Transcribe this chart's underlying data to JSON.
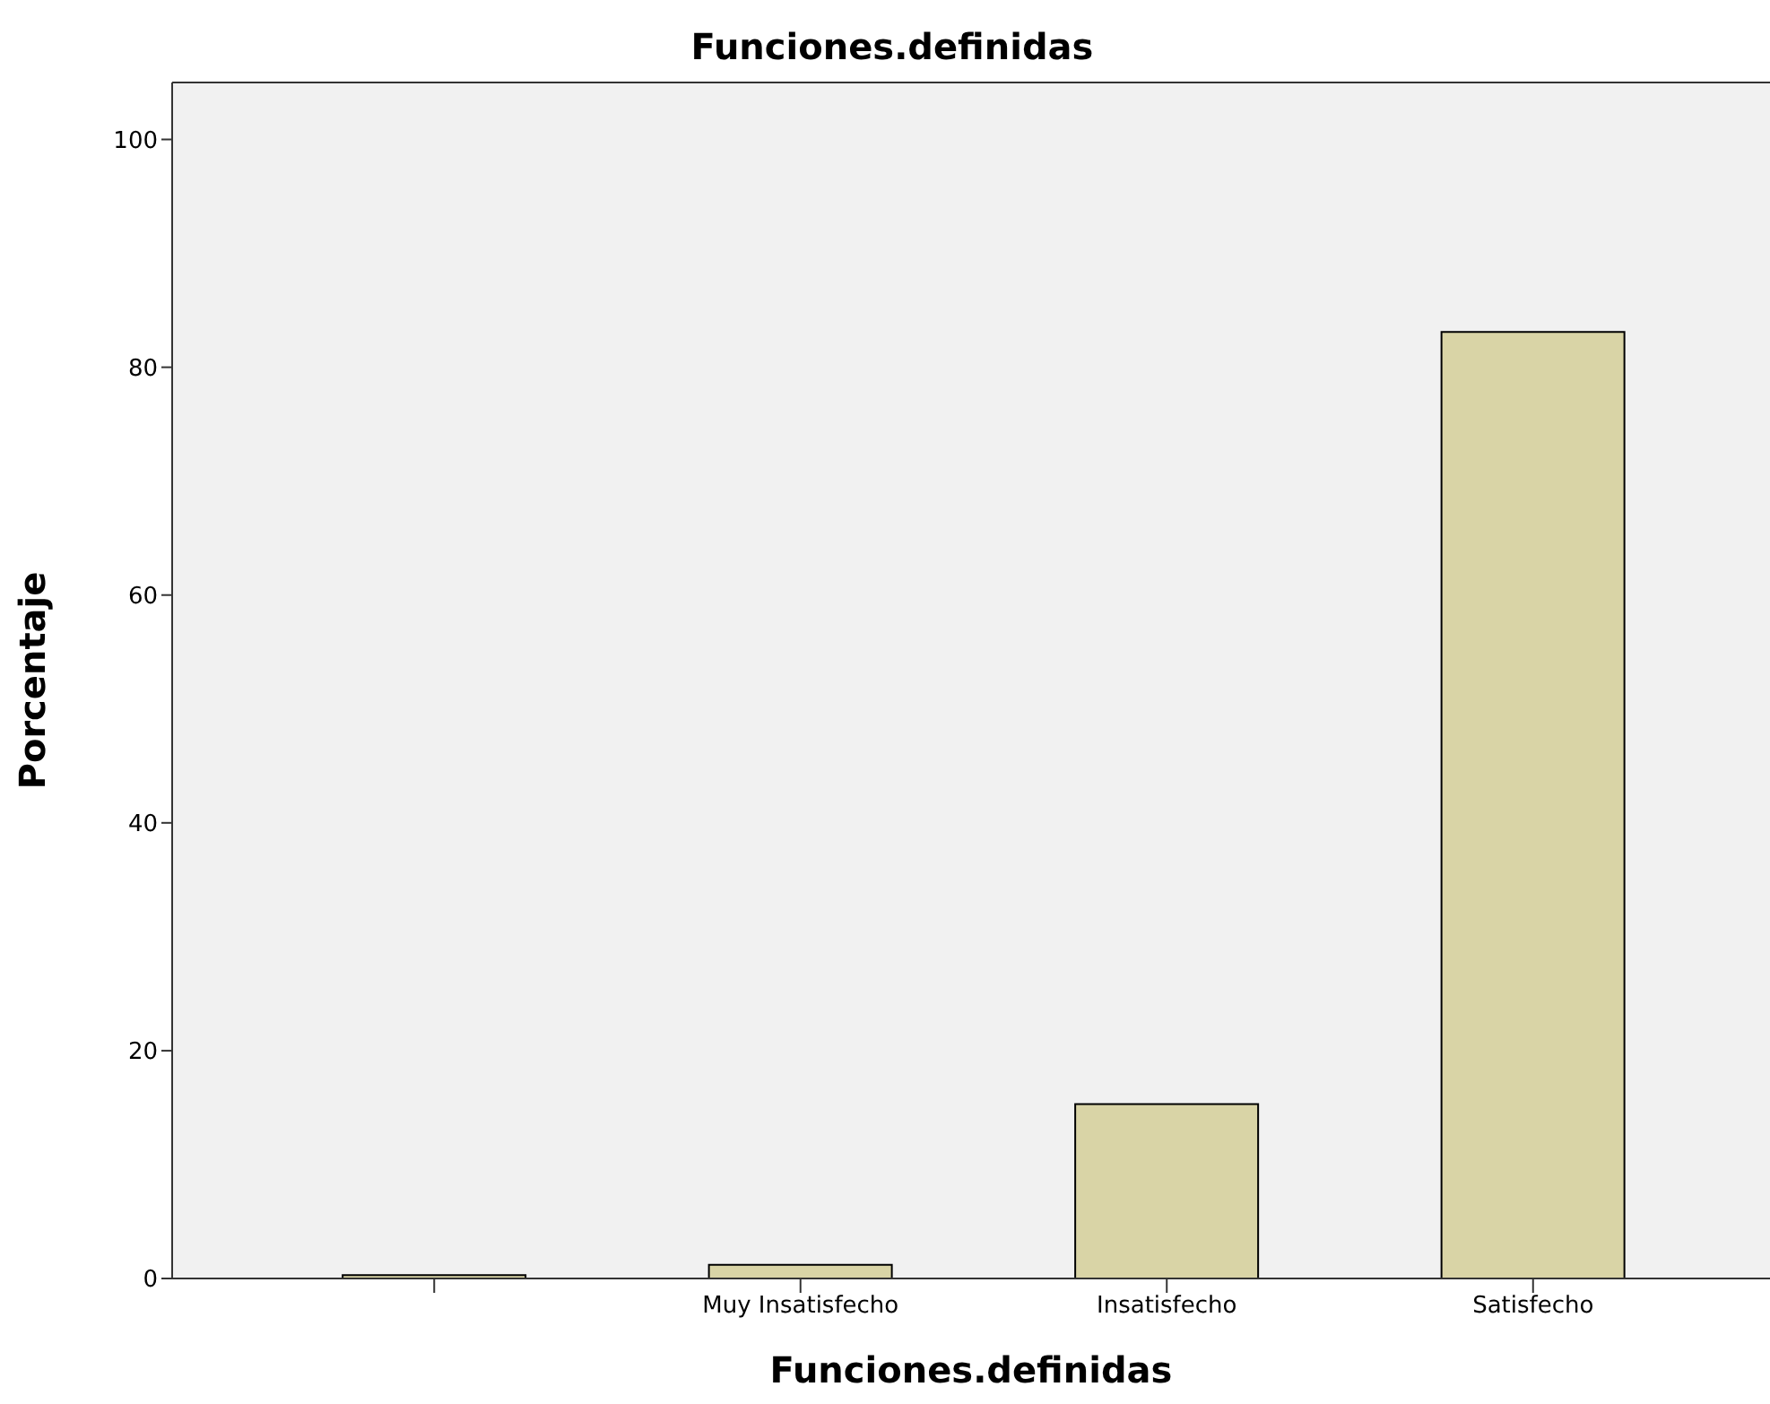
{
  "chart_data": {
    "type": "bar",
    "title": "Funciones.definidas",
    "xlabel": "Funciones.definidas",
    "ylabel": "Porcentaje",
    "categories": [
      null,
      "Muy Insatisfecho",
      "Insatisfecho",
      "Satisfecho"
    ],
    "values": [
      0.3,
      1.2,
      15.3,
      83.1
    ],
    "color": "#d9d4a6",
    "ylim": [
      0,
      105
    ],
    "yticks": [
      0,
      20,
      40,
      60,
      80,
      100
    ],
    "grid": false
  }
}
